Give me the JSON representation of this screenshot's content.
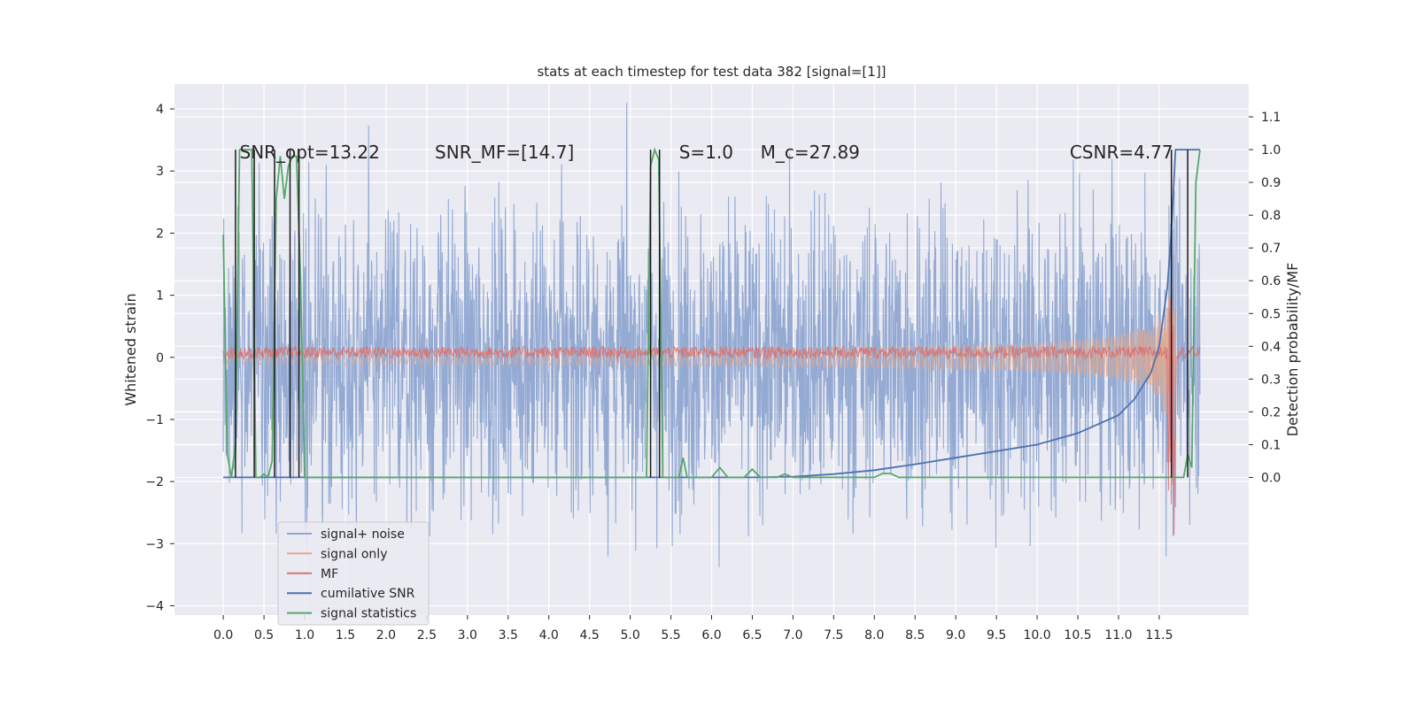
{
  "chart_data": {
    "type": "line",
    "title": "stats at each timestep for test data 382 [signal=[1]]",
    "xlabel": "",
    "ylabel": "Whitened strain",
    "ylabel_right": "Detection probability/MF",
    "xlim": [
      -0.6,
      12.6
    ],
    "ylim": [
      -4.15,
      4.4
    ],
    "ylim_right": [
      -0.42,
      1.2
    ],
    "x_ticks": [
      "0.0",
      "0.5",
      "1.0",
      "1.5",
      "2.0",
      "2.5",
      "3.0",
      "3.5",
      "4.0",
      "4.5",
      "5.0",
      "5.5",
      "6.0",
      "6.5",
      "7.0",
      "7.5",
      "8.0",
      "8.5",
      "9.0",
      "9.5",
      "10.0",
      "10.5",
      "11.0",
      "11.5"
    ],
    "y_ticks": [
      "4",
      "3",
      "2",
      "1",
      "0",
      "−1",
      "−2",
      "−3",
      "−4"
    ],
    "y_ticks_right": [
      "1.1",
      "1.0",
      "0.9",
      "0.8",
      "0.7",
      "0.6",
      "0.5",
      "0.4",
      "0.3",
      "0.2",
      "0.1",
      "0.0"
    ],
    "annotations": [
      {
        "text": "SNR_opt=13.22",
        "x": 0.2,
        "y": 3.2
      },
      {
        "text": "SNR_MF=[14.7]",
        "x": 2.6,
        "y": 3.2
      },
      {
        "text": "S=1.0",
        "x": 5.6,
        "y": 3.2
      },
      {
        "text": "M_c=27.89",
        "x": 6.6,
        "y": 3.2
      },
      {
        "text": "CSNR=4.77",
        "x": 10.4,
        "y": 3.2
      }
    ],
    "legend": {
      "placement": "lower-left",
      "entries": [
        {
          "label": "signal+ noise",
          "color": "#8fa6d1"
        },
        {
          "label": "signal only",
          "color": "#e5a88a"
        },
        {
          "label": "MF",
          "color": "#d97070"
        },
        {
          "label": "cumilative SNR",
          "color": "#4c72b0"
        },
        {
          "label": "signal statistics",
          "color": "#55a868"
        }
      ]
    },
    "series": [
      {
        "name": "signal+ noise",
        "axis": "left",
        "color": "#8fa6d1",
        "kind": "noise",
        "x_range": [
          0.0,
          12.0
        ],
        "y_band": [
          -3.7,
          4.1
        ],
        "typical_abs": 1.4
      },
      {
        "name": "signal only",
        "axis": "left",
        "color": "#e5a88a",
        "kind": "chirp",
        "x_range": [
          0.0,
          11.7
        ],
        "amp_start": 0.05,
        "amp_end": 1.0
      },
      {
        "name": "MF",
        "axis": "left",
        "color": "#d97070",
        "kind": "mf",
        "x_range": [
          0.0,
          12.0
        ],
        "level": 0.08,
        "jitter": 0.2
      },
      {
        "name": "cumilative SNR",
        "axis": "right",
        "color": "#4c72b0",
        "x": [
          0.0,
          6.0,
          6.5,
          7.0,
          7.5,
          8.0,
          8.5,
          9.0,
          9.5,
          10.0,
          10.5,
          11.0,
          11.2,
          11.4,
          11.5,
          11.6,
          11.65,
          11.7,
          11.75,
          12.0
        ],
        "y": [
          0.0,
          0.0,
          0.0,
          0.002,
          0.01,
          0.022,
          0.04,
          0.06,
          0.08,
          0.1,
          0.135,
          0.19,
          0.24,
          0.32,
          0.4,
          0.58,
          0.75,
          1.0,
          1.0,
          1.0
        ]
      },
      {
        "name": "signal statistics",
        "axis": "right",
        "color": "#55a868",
        "x": [
          0.0,
          0.05,
          0.1,
          0.15,
          0.2,
          0.25,
          0.3,
          0.35,
          0.4,
          0.45,
          0.5,
          0.55,
          0.6,
          0.65,
          0.7,
          0.75,
          0.8,
          0.85,
          0.9,
          0.95,
          1.0,
          1.05,
          1.1,
          5.2,
          5.25,
          5.3,
          5.35,
          5.4,
          5.45,
          5.5,
          5.6,
          5.65,
          5.7,
          5.75,
          6.0,
          6.1,
          6.2,
          6.4,
          6.5,
          6.6,
          6.8,
          6.9,
          7.0,
          7.9,
          8.0,
          8.1,
          8.2,
          8.3,
          8.4,
          11.75,
          11.8,
          11.85,
          11.9,
          11.95,
          12.0
        ],
        "y": [
          0.74,
          0.07,
          0.0,
          0.1,
          1.0,
          1.0,
          1.0,
          1.0,
          0.0,
          0.0,
          0.01,
          0.0,
          0.05,
          0.85,
          0.98,
          0.85,
          0.95,
          0.98,
          0.98,
          0.6,
          0.0,
          0.0,
          0.0,
          0.0,
          0.95,
          1.0,
          0.97,
          0.0,
          0.0,
          0.0,
          0.0,
          0.06,
          0.0,
          0.0,
          0.0,
          0.03,
          0.0,
          0.0,
          0.025,
          0.0,
          0.0,
          0.01,
          0.0,
          0.0,
          0.0,
          0.012,
          0.012,
          0.0,
          0.0,
          0.0,
          0.0,
          0.07,
          0.03,
          0.9,
          1.0
        ]
      },
      {
        "name": "",
        "axis": "right",
        "color": "#1a1a1a",
        "kind": "vlines",
        "x": [
          0.15,
          0.38,
          0.63,
          0.82,
          0.93,
          5.25,
          5.36,
          11.65,
          11.85
        ],
        "y_from": 0.0,
        "y_to": 1.0
      }
    ]
  }
}
